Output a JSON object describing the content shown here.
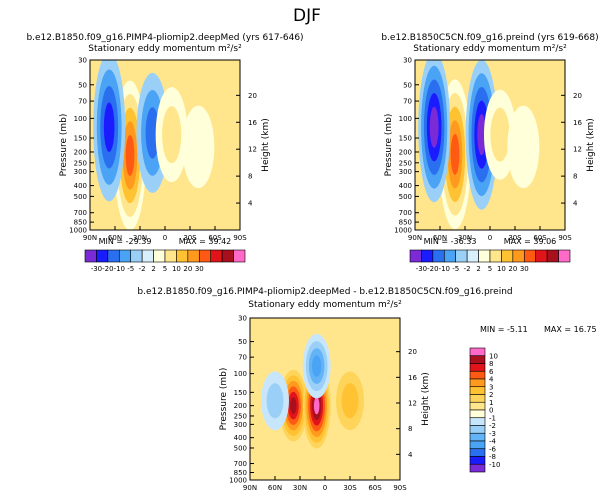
{
  "page_title": "DJF",
  "color_scale_top": [
    -30,
    -20,
    -10,
    -5,
    -2,
    2,
    5,
    10,
    20,
    30
  ],
  "colors_top": [
    "#7b2bd6",
    "#1b1bff",
    "#2a6ff0",
    "#4aa3f5",
    "#9ad0f8",
    "#d8f0fc",
    "#ffffd9",
    "#ffe68c",
    "#ffc233",
    "#ff9a1f",
    "#ff5a14",
    "#e0141a",
    "#a8101e",
    "#ff69c8"
  ],
  "color_scale_diff": [
    -10,
    -8,
    -6,
    -4,
    -3,
    -2,
    -1,
    0,
    1,
    2,
    3,
    4,
    6,
    8,
    10
  ],
  "colors_diff": [
    "#7b2bd6",
    "#1b1bff",
    "#2a6ff0",
    "#4aa3f5",
    "#62b4f6",
    "#9ad0f8",
    "#c8e6fb",
    "#ffffd9",
    "#ffe68c",
    "#ffd45a",
    "#ffc233",
    "#ff9a1f",
    "#ff5a14",
    "#e0141a",
    "#a8101e",
    "#ff69c8"
  ],
  "chart_data": [
    {
      "type": "heatmap",
      "title": "b.e12.B1850.f09_g16.PIMP4-pliomip2.deepMed  (yrs 617-646)",
      "subtitle": "Stationary eddy momentum",
      "units": "m²/s²",
      "ylabel": "Pressure (mb)",
      "y2label": "Height (km)",
      "x_ticks": [
        "90N",
        "60N",
        "30N",
        "0",
        "30S",
        "60S",
        "90S"
      ],
      "y_ticks": [
        30,
        50,
        70,
        100,
        150,
        200,
        250,
        300,
        400,
        500,
        700,
        850,
        1000
      ],
      "y2_ticks": [
        4,
        8,
        12,
        16,
        20
      ],
      "min_label": "MIN = -29.39",
      "max_label": "MAX = 39.42",
      "features": [
        {
          "lat": 42,
          "p": 215,
          "value": 39.42
        },
        {
          "lat": 67,
          "p": 120,
          "value": -29.39
        },
        {
          "lat": 15,
          "p": 135,
          "value": -18
        },
        {
          "lat": -8,
          "p": 140,
          "value": 8
        },
        {
          "lat": -40,
          "p": 180,
          "value": 3
        }
      ]
    },
    {
      "type": "heatmap",
      "title": "b.e12.B1850C5CN.f09_g16.preind  (yrs 619-668)",
      "subtitle": "Stationary eddy momentum",
      "units": "m²/s²",
      "ylabel": "Pressure (mb)",
      "y2label": "Height (km)",
      "x_ticks": [
        "90N",
        "60N",
        "30N",
        "0",
        "30S",
        "60S",
        "90S"
      ],
      "y_ticks": [
        30,
        50,
        70,
        100,
        150,
        200,
        250,
        300,
        400,
        500,
        700,
        850,
        1000
      ],
      "y2_ticks": [
        4,
        8,
        12,
        16,
        20
      ],
      "min_label": "MIN = -36.33",
      "max_label": "MAX = 39.06",
      "features": [
        {
          "lat": 42,
          "p": 210,
          "value": 39.06
        },
        {
          "lat": 67,
          "p": 120,
          "value": -30
        },
        {
          "lat": 10,
          "p": 140,
          "value": -36.33
        },
        {
          "lat": -12,
          "p": 140,
          "value": 6
        },
        {
          "lat": -40,
          "p": 180,
          "value": 3
        }
      ]
    },
    {
      "type": "heatmap",
      "title": "b.e12.B1850.f09_g16.PIMP4-pliomip2.deepMed - b.e12.B1850C5CN.f09_g16.preind",
      "subtitle": "Stationary eddy momentum",
      "units": "m²/s²",
      "ylabel": "Pressure (mb)",
      "y2label": "Height (km)",
      "x_ticks": [
        "90N",
        "60N",
        "30N",
        "0",
        "30S",
        "60S",
        "90S"
      ],
      "y_ticks": [
        30,
        50,
        70,
        100,
        150,
        200,
        250,
        300,
        400,
        500,
        700,
        850,
        1000
      ],
      "y2_ticks": [
        4,
        8,
        12,
        16,
        20
      ],
      "min_label": "MIN = -5.11",
      "max_label": "MAX = 16.75",
      "features": [
        {
          "lat": 38,
          "p": 200,
          "value": 9
        },
        {
          "lat": 10,
          "p": 200,
          "value": 16.75
        },
        {
          "lat": 10,
          "p": 85,
          "value": -5.11
        },
        {
          "lat": 60,
          "p": 180,
          "value": -2
        },
        {
          "lat": -30,
          "p": 180,
          "value": 2
        }
      ]
    }
  ]
}
